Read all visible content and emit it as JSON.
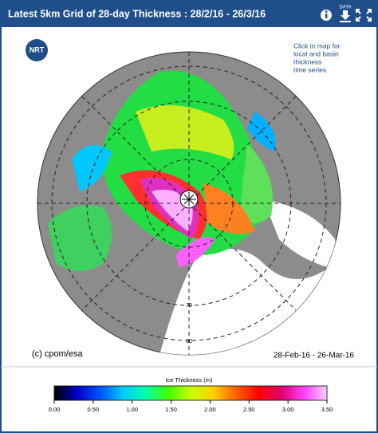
{
  "header": {
    "title": "Latest 5km Grid of 28-day Thickness : 28/2/16 - 26/3/16",
    "data_label": "DATA"
  },
  "map": {
    "badge": "NRT",
    "note": [
      "Click in map for",
      "local and basin",
      "thickness",
      "time series"
    ],
    "copyright": "(c) cpom/esa",
    "date_range": "28-Feb-16 - 26-Mar-16",
    "lat_labels": [
      "70",
      "60"
    ]
  },
  "colorbar": {
    "title": "Ice Thickness (m)",
    "range": [
      0,
      3.5
    ],
    "colors": [
      "#000000",
      "#0000c8",
      "#0050ff",
      "#00c8ff",
      "#00ffb0",
      "#40ff00",
      "#c8ff00",
      "#ffd000",
      "#ff6000",
      "#ff0000",
      "#e00070",
      "#ff40ff",
      "#ffd0ff"
    ],
    "ticks": [
      {
        "value": 0,
        "label": "0.00"
      },
      {
        "value": 0.5,
        "label": "0.50"
      },
      {
        "value": 1,
        "label": "1.00"
      },
      {
        "value": 1.5,
        "label": "1.50"
      },
      {
        "value": 2,
        "label": "2.00"
      },
      {
        "value": 2.5,
        "label": "2.50"
      },
      {
        "value": 3,
        "label": "3.00"
      },
      {
        "value": 3.5,
        "label": "3.50"
      }
    ]
  }
}
